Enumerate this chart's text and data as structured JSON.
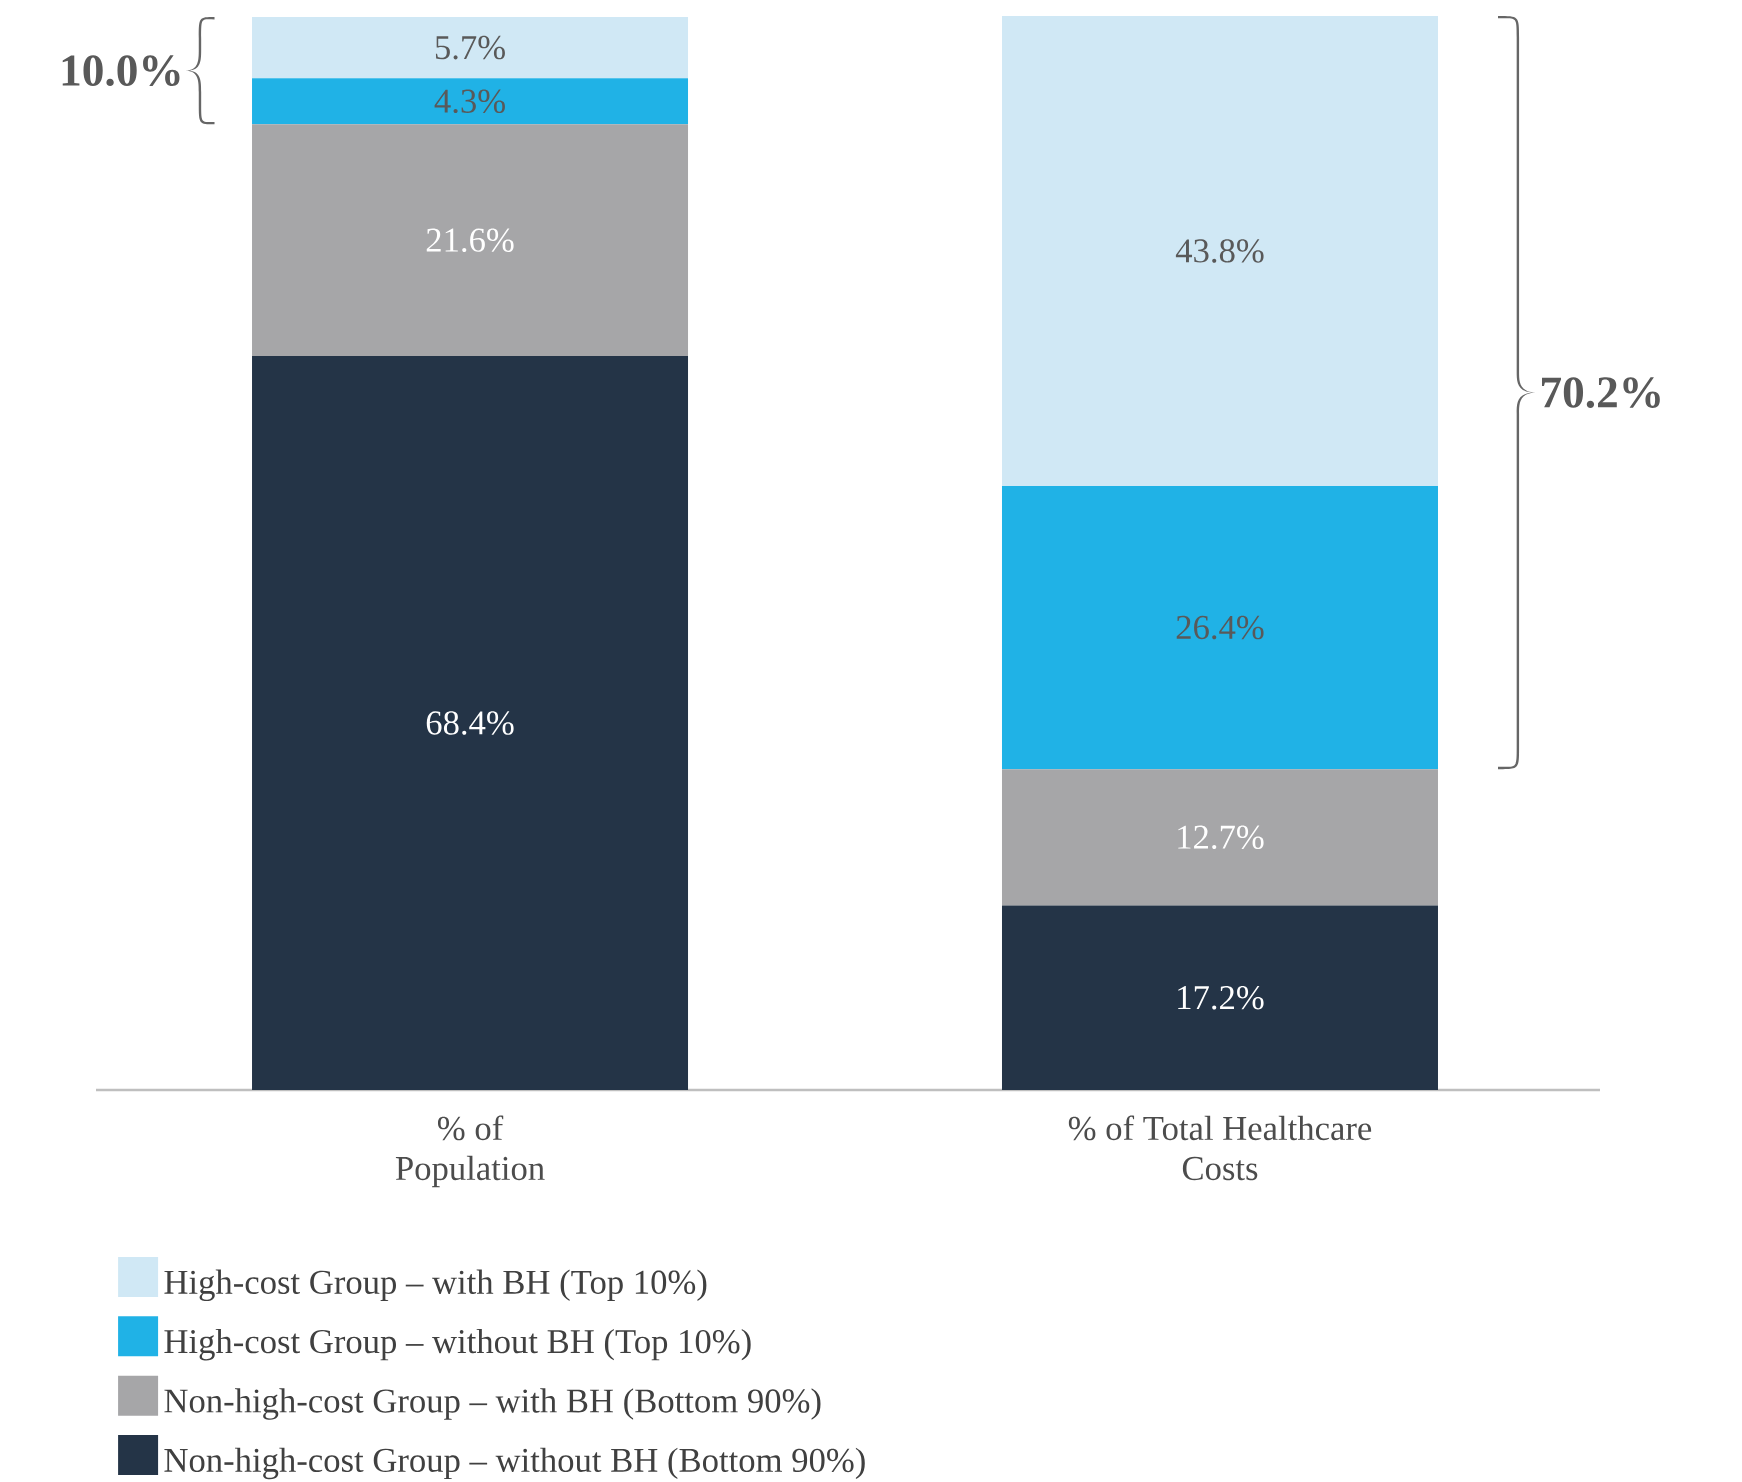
{
  "chart_data": {
    "type": "bar",
    "stacked": true,
    "categories": [
      "% of Population",
      "% of Total Healthcare Costs"
    ],
    "series": [
      {
        "name": "Non-high-cost Group – without BH (Bottom 90%)",
        "color": "#243447",
        "values": [
          68.4,
          17.2
        ],
        "value_labels": [
          "68.4%",
          "17.2%"
        ]
      },
      {
        "name": "Non-high-cost Group – with BH (Bottom 90%)",
        "color": "#a6a6a8",
        "values": [
          21.6,
          12.7
        ],
        "value_labels": [
          "21.6%",
          "12.7%"
        ]
      },
      {
        "name": "High-cost Group – without BH (Top 10%)",
        "color": "#20b2e6",
        "values": [
          4.3,
          26.4
        ],
        "value_labels": [
          "4.3%",
          "26.4%"
        ]
      },
      {
        "name": "High-cost Group – with BH (Top 10%)",
        "color": "#d0e8f5",
        "values": [
          5.7,
          43.8
        ],
        "value_labels": [
          "5.7%",
          "43.8%"
        ]
      }
    ],
    "annotations": [
      "10.0%",
      "70.2%"
    ],
    "legend": "bottom"
  }
}
